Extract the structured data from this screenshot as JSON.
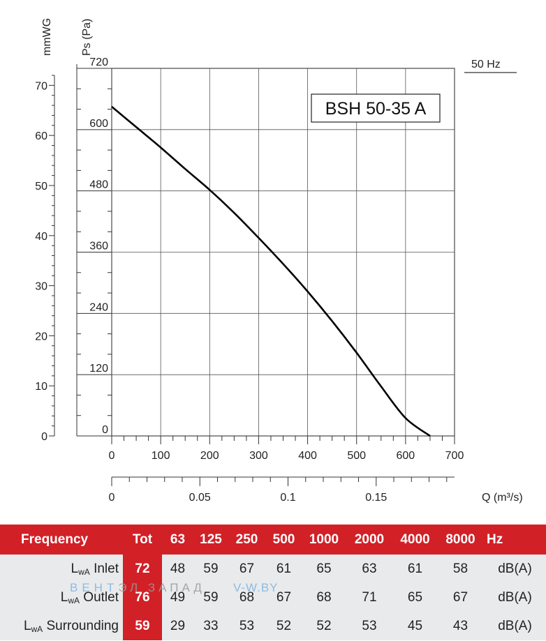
{
  "chart_data": {
    "type": "line",
    "model": "BSH 50-35 A",
    "frequency_label": "50 Hz",
    "y_left_label": "mmWG",
    "y_label": "Ps (Pa)",
    "x_label": "Q (m³/s)",
    "xlim": [
      0,
      700
    ],
    "ylim": [
      0,
      720
    ],
    "x_ticks": [
      "0",
      "100",
      "200",
      "300",
      "400",
      "500",
      "600",
      "700"
    ],
    "y_ticks": [
      "0",
      "120",
      "240",
      "360",
      "480",
      "600",
      "720"
    ],
    "mmwg_ticks": [
      "0",
      "10",
      "20",
      "30",
      "40",
      "50",
      "60",
      "70"
    ],
    "q_ticks": [
      "0",
      "0.05",
      "0.1",
      "0.15"
    ],
    "q_tick_values": [
      0,
      0.05,
      0.1,
      0.15
    ],
    "q_per_x_unit": 0.00027778,
    "pa_per_mmwg": 9.81,
    "grid": true,
    "series": [
      {
        "x": [
          0,
          50,
          100,
          150,
          200,
          250,
          300,
          350,
          400,
          450,
          500,
          550,
          600,
          650
        ],
        "y": [
          645,
          605,
          565,
          523,
          482,
          437,
          388,
          337,
          283,
          225,
          163,
          97,
          35,
          0
        ]
      }
    ]
  },
  "noise_table": {
    "header": {
      "frequency": "Frequency",
      "tot": "Tot",
      "bands": [
        "63",
        "125",
        "250",
        "500",
        "1000",
        "2000",
        "4000",
        "8000"
      ],
      "unit": "Hz"
    },
    "rows": [
      {
        "prefix": "L",
        "sub": "wA",
        "label": "Inlet",
        "tot": "72",
        "values": [
          "48",
          "59",
          "67",
          "61",
          "65",
          "63",
          "61",
          "58"
        ],
        "unit": "dB(A)"
      },
      {
        "prefix": "L",
        "sub": "wA",
        "label": "Outlet",
        "tot": "76",
        "values": [
          "49",
          "59",
          "68",
          "67",
          "68",
          "71",
          "65",
          "67"
        ],
        "unit": "dB(A)"
      },
      {
        "prefix": "L",
        "sub": "wA",
        "label": "Surrounding",
        "tot": "59",
        "values": [
          "29",
          "33",
          "53",
          "52",
          "52",
          "53",
          "45",
          "43"
        ],
        "unit": "dB(A)"
      }
    ]
  },
  "watermark": {
    "part1": "ВЕНТ",
    "part2": "ЭЛ ЗАПАД",
    "part3": "V-W.BY"
  },
  "colors": {
    "accent": "#d22027",
    "row_bg": "#e9eaec",
    "grid": "#555555",
    "curve": "#000000"
  }
}
